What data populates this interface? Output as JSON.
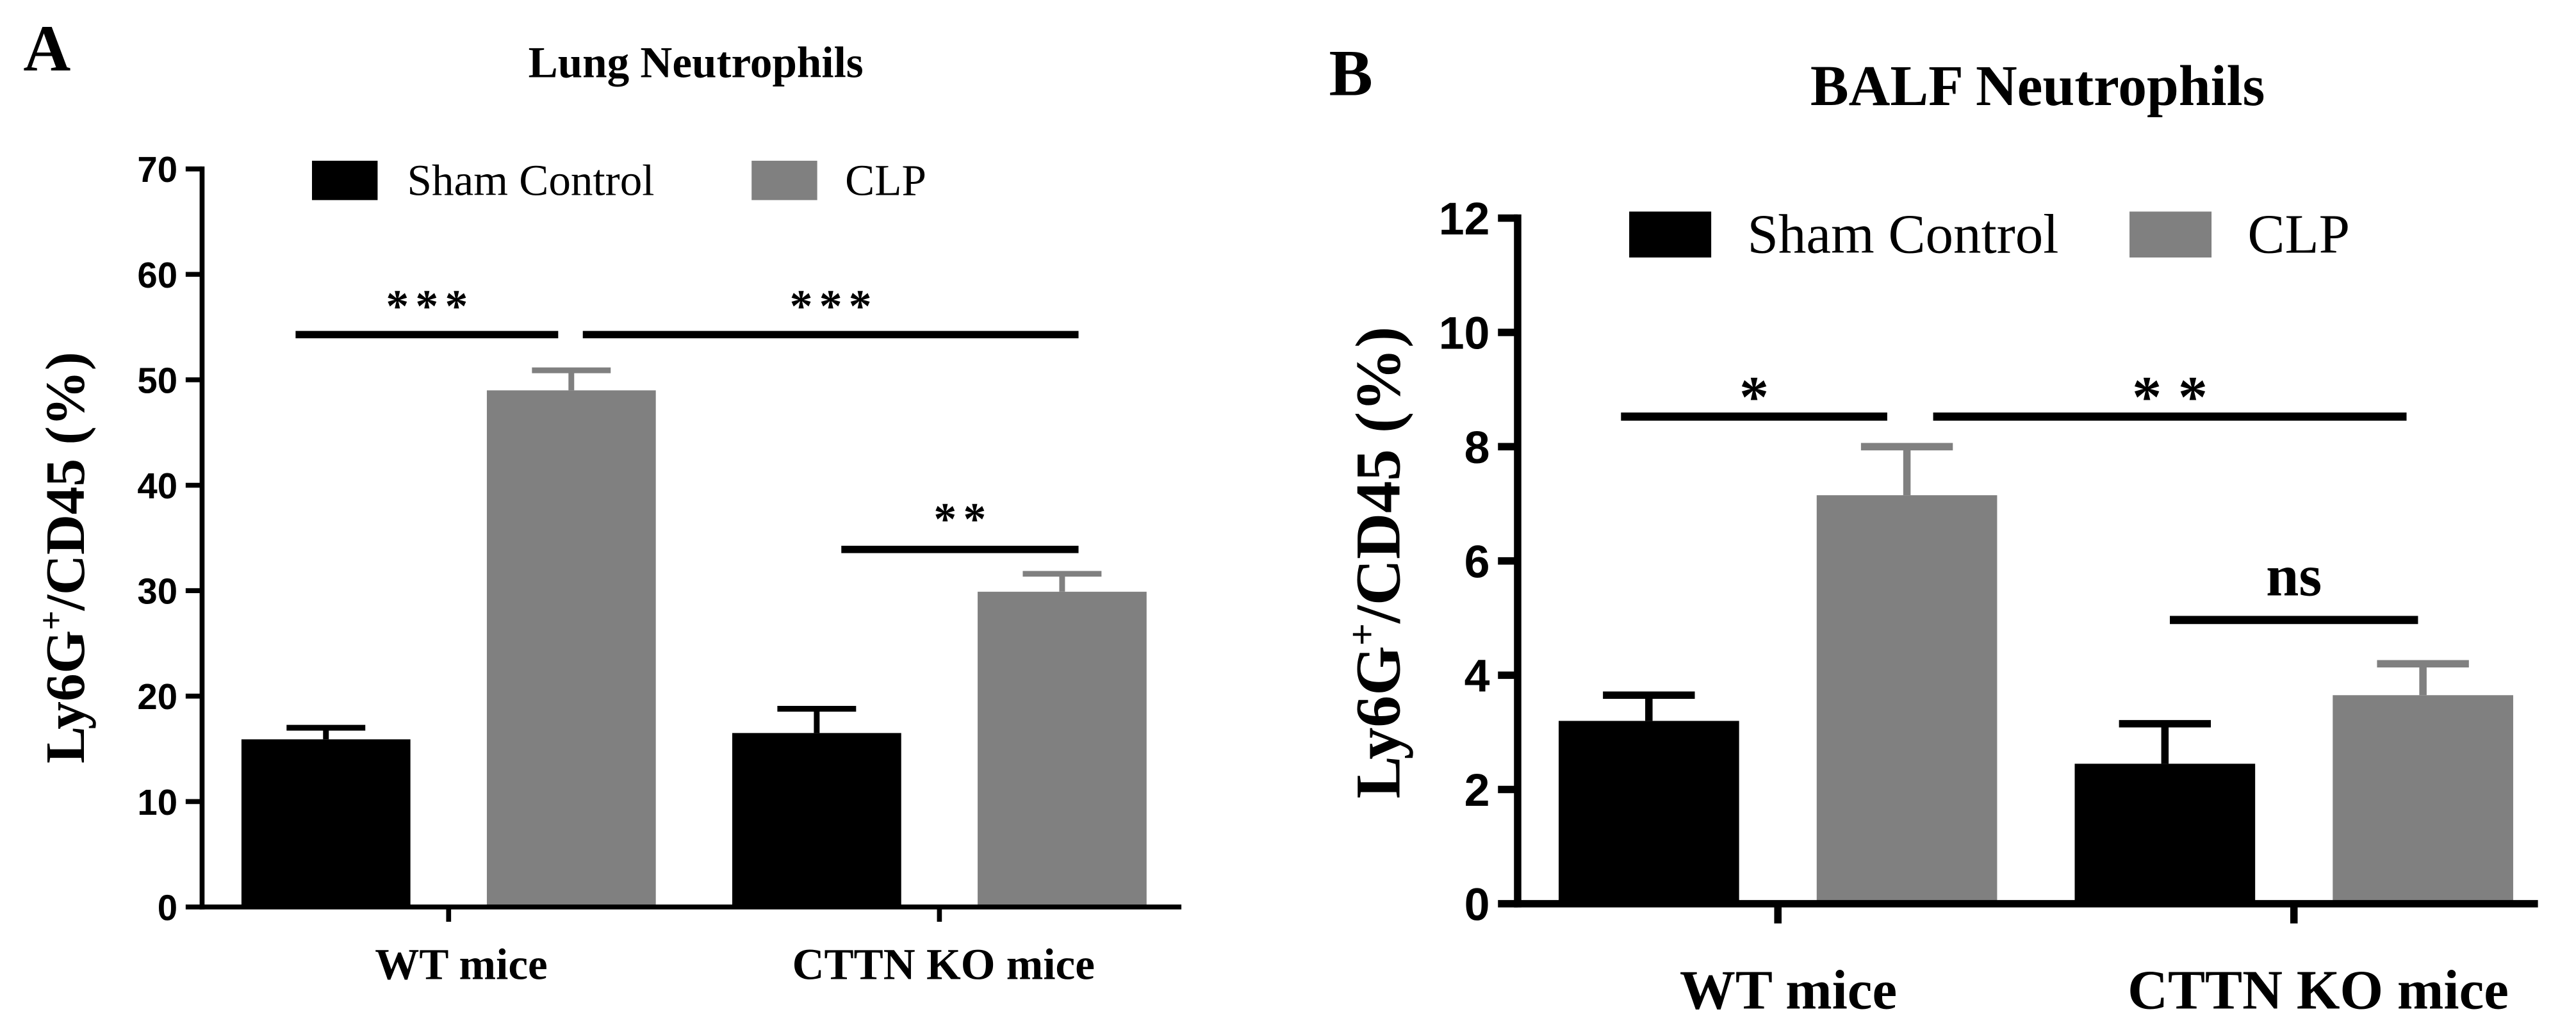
{
  "chart_data": [
    {
      "type": "bar",
      "panel_label": "A",
      "title": "Lung Neutrophils",
      "ylabel": {
        "base": "Ly6G",
        "superscript": "+",
        "suffix": "/CD45 (%)"
      },
      "categories": [
        "WT mice",
        "CTTN KO mice"
      ],
      "ylim": [
        0,
        70
      ],
      "yticks": [
        0,
        10,
        20,
        30,
        40,
        50,
        60,
        70
      ],
      "grid": false,
      "series": [
        {
          "name": "Sham Control",
          "color": "#000000",
          "values": [
            15.9,
            16.5
          ],
          "errors": [
            1.1,
            2.3
          ]
        },
        {
          "name": "CLP",
          "color": "#808080",
          "values": [
            49.0,
            29.9
          ],
          "errors": [
            1.9,
            1.7
          ]
        }
      ],
      "significance": [
        {
          "label": "***",
          "from": {
            "category": 0,
            "series": 0
          },
          "to": {
            "category": 0,
            "series": 1
          }
        },
        {
          "label": "***",
          "from": {
            "category": 0,
            "series": 1
          },
          "to": {
            "category": 1,
            "series": 1
          }
        },
        {
          "label": "**",
          "from": {
            "category": 1,
            "series": 0
          },
          "to": {
            "category": 1,
            "series": 1
          }
        }
      ]
    },
    {
      "type": "bar",
      "panel_label": "B",
      "title": "BALF Neutrophils",
      "ylabel": {
        "base": "Ly6G",
        "superscript": "+",
        "suffix": "/CD45 (%)"
      },
      "categories": [
        "WT mice",
        "CTTN KO mice"
      ],
      "ylim": [
        0,
        12
      ],
      "yticks": [
        0,
        2,
        4,
        6,
        8,
        10,
        12
      ],
      "grid": false,
      "series": [
        {
          "name": "Sham Control",
          "color": "#000000",
          "values": [
            3.2,
            2.45
          ],
          "errors": [
            0.45,
            0.7
          ]
        },
        {
          "name": "CLP",
          "color": "#808080",
          "values": [
            7.15,
            3.65
          ],
          "errors": [
            0.85,
            0.55
          ]
        }
      ],
      "significance": [
        {
          "label": "*",
          "from": {
            "category": 0,
            "series": 0
          },
          "to": {
            "category": 0,
            "series": 1
          }
        },
        {
          "label": "**",
          "from": {
            "category": 0,
            "series": 1
          },
          "to": {
            "category": 1,
            "series": 1
          }
        },
        {
          "label": "ns",
          "from": {
            "category": 1,
            "series": 0
          },
          "to": {
            "category": 1,
            "series": 1
          }
        }
      ]
    }
  ]
}
